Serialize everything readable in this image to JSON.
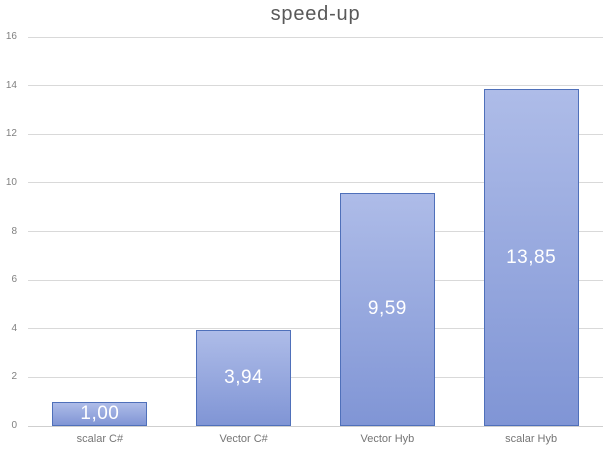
{
  "chart_data": {
    "type": "bar",
    "title": "speed-up",
    "categories": [
      "scalar C#",
      "Vector C#",
      "Vector Hyb",
      "scalar Hyb"
    ],
    "values": [
      1.0,
      3.94,
      9.59,
      13.85
    ],
    "data_labels": [
      "1,00",
      "3,94",
      "9,59",
      "13,85"
    ],
    "xlabel": "",
    "ylabel": "",
    "ylim": [
      0,
      16
    ],
    "yticks": [
      0,
      2,
      4,
      6,
      8,
      10,
      12,
      14,
      16
    ],
    "grid": true,
    "legend": "none"
  },
  "colors": {
    "background": "#ffffff",
    "title_text": "#595959",
    "axis_text": "#808080",
    "category_text": "#757575",
    "gridline": "#d9d9d9",
    "axis_line": "#cfcfcf",
    "bar_fill_top": "#aebce8",
    "bar_fill_bottom": "#8095d5",
    "bar_border": "#4f70ba",
    "data_label_text": "#ffffff"
  }
}
